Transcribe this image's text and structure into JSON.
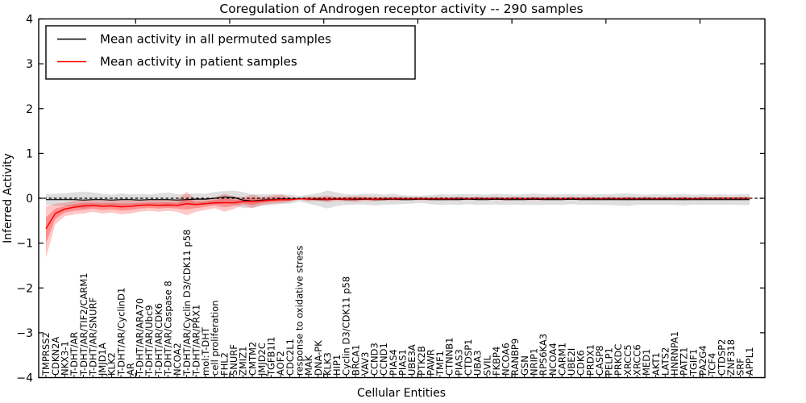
{
  "figure": {
    "background": "#ffffff",
    "accent_black": "#000000",
    "accent_red": "#ff0000",
    "band_gray": "#999999",
    "band_red": "#ff0000"
  },
  "chart_data": {
    "type": "line",
    "title": "Coregulation of Androgen receptor activity -- 290 samples",
    "xlabel": "Cellular Entities",
    "ylabel": "Inferred Activity",
    "ylim": [
      -4,
      4
    ],
    "yticks": [
      -4,
      -3,
      -2,
      -1,
      0,
      1,
      2,
      3,
      4
    ],
    "ytick_labels": [
      "−4",
      "−3",
      "−2",
      "−1",
      "0",
      "1",
      "2",
      "3",
      "4"
    ],
    "grid": false,
    "legend_position": "upper left",
    "zero_line": 0,
    "categories": [
      "TMPRSS2",
      "CDKN2A",
      "NKX3-1",
      "T-DHT/AR",
      "T-DHT/AR/TIF2/CARM1",
      "T-DHT/AR/SNURF",
      "JMJD1A",
      "KLK2",
      "T-DHT/AR/CyclinD1",
      "AR",
      "T-DHT/AR/ARA70",
      "T-DHT/AR/Ubc9",
      "T-DHT/AR/CDK6",
      "T-DHT/AR/Caspase 8",
      "NCOA2",
      "T-DHT/AR/Cyclin D3/CDK11 p58",
      "T-DHT/AR/PRX1",
      "mol:T-DHT",
      "cell proliferation",
      "FHL2",
      "SNURF",
      "ZMIZ1",
      "CMTM2",
      "JMJD2C",
      "TGFB1I1",
      "AOF2",
      "CDC2L1",
      "response to oxidative stress",
      "MAK",
      "DNA-PK",
      "KLK3",
      "HIP1",
      "Cyclin D3/CDK11 p58",
      "BRCA1",
      "VAV3",
      "CCND3",
      "CCND1",
      "PIAS4",
      "PIAS1",
      "UBE3A",
      "PTK2B",
      "PAWR",
      "TMF1",
      "CTNNB1",
      "PIAS3",
      "CTDSP1",
      "UBA3",
      "SVIL",
      "FKBP4",
      "NCOA6",
      "RANBP9",
      "GSN",
      "NRIP1",
      "RPS6KA3",
      "NCOA4",
      "CARM1",
      "UBE2I",
      "CDK6",
      "PRDX1",
      "CASP8",
      "PELP1",
      "PRKDC",
      "XRCC5",
      "XRCC6",
      "MED1",
      "AKT1",
      "LATS2",
      "HNRNPA1",
      "PATZ1",
      "TGIF1",
      "PA2G4",
      "TCF4",
      "CTDSP2",
      "ZNF318",
      "SRF",
      "APPL1"
    ],
    "series": [
      {
        "name": "Mean activity in all permuted samples",
        "color": "#000000",
        "values": [
          -0.03,
          -0.03,
          -0.03,
          -0.03,
          -0.04,
          -0.03,
          -0.03,
          -0.04,
          -0.03,
          -0.03,
          -0.04,
          -0.03,
          -0.03,
          -0.03,
          -0.04,
          -0.03,
          -0.02,
          -0.02,
          0.0,
          0.03,
          0.02,
          -0.04,
          -0.06,
          -0.04,
          -0.03,
          -0.02,
          -0.02,
          -0.01,
          -0.02,
          -0.03,
          -0.03,
          -0.02,
          -0.03,
          -0.03,
          -0.02,
          -0.03,
          -0.03,
          -0.02,
          -0.03,
          -0.03,
          -0.02,
          -0.03,
          -0.03,
          -0.03,
          -0.03,
          -0.02,
          -0.03,
          -0.03,
          -0.02,
          -0.03,
          -0.03,
          -0.03,
          -0.02,
          -0.03,
          -0.03,
          -0.03,
          -0.02,
          -0.03,
          -0.03,
          -0.03,
          -0.03,
          -0.03,
          -0.03,
          -0.03,
          -0.03,
          -0.03,
          -0.03,
          -0.03,
          -0.03,
          -0.03,
          -0.03,
          -0.03,
          -0.03,
          -0.03,
          -0.03,
          -0.03
        ],
        "band_halfwidth": [
          0.12,
          0.13,
          0.14,
          0.16,
          0.19,
          0.16,
          0.13,
          0.12,
          0.14,
          0.12,
          0.13,
          0.12,
          0.14,
          0.16,
          0.13,
          0.12,
          0.13,
          0.12,
          0.14,
          0.13,
          0.15,
          0.18,
          0.15,
          0.13,
          0.12,
          0.11,
          0.1,
          0.06,
          0.1,
          0.14,
          0.2,
          0.15,
          0.12,
          0.11,
          0.12,
          0.13,
          0.11,
          0.12,
          0.1,
          0.09,
          0.08,
          0.1,
          0.12,
          0.11,
          0.12,
          0.11,
          0.12,
          0.11,
          0.12,
          0.12,
          0.11,
          0.12,
          0.13,
          0.12,
          0.11,
          0.12,
          0.11,
          0.12,
          0.11,
          0.12,
          0.12,
          0.13,
          0.14,
          0.12,
          0.11,
          0.12,
          0.11,
          0.12,
          0.13,
          0.11,
          0.12,
          0.11,
          0.12,
          0.11,
          0.12,
          0.12
        ]
      },
      {
        "name": "Mean activity in patient samples",
        "color": "#ff0000",
        "values": [
          -0.68,
          -0.34,
          -0.24,
          -0.2,
          -0.17,
          -0.16,
          -0.18,
          -0.17,
          -0.19,
          -0.18,
          -0.16,
          -0.15,
          -0.16,
          -0.15,
          -0.16,
          -0.12,
          -0.14,
          -0.12,
          -0.1,
          -0.1,
          -0.1,
          -0.07,
          -0.07,
          -0.06,
          -0.04,
          -0.03,
          -0.03,
          -0.01,
          -0.02,
          -0.01,
          -0.02,
          -0.01,
          -0.02,
          -0.01,
          -0.01,
          -0.02,
          -0.01,
          -0.01,
          -0.01,
          -0.01,
          -0.01,
          -0.01,
          -0.01,
          -0.01,
          0.0,
          -0.01,
          0.0,
          -0.01,
          0.0,
          -0.01,
          0.0,
          -0.01,
          0.0,
          -0.01,
          0.0,
          -0.01,
          0.0,
          -0.01,
          0.0,
          -0.01,
          0.0,
          -0.01,
          0.0,
          -0.01,
          0.0,
          -0.01,
          0.0,
          -0.01,
          0.0,
          -0.01,
          0.0,
          0.0,
          0.0,
          0.0,
          0.0,
          0.0
        ],
        "band_lower": [
          -1.33,
          -0.58,
          -0.4,
          -0.36,
          -0.34,
          -0.3,
          -0.34,
          -0.32,
          -0.36,
          -0.34,
          -0.3,
          -0.28,
          -0.3,
          -0.28,
          -0.3,
          -0.38,
          -0.3,
          -0.26,
          -0.22,
          -0.3,
          -0.24,
          -0.16,
          -0.22,
          -0.15,
          -0.12,
          -0.11,
          -0.08,
          -0.03,
          -0.07,
          -0.06,
          -0.09,
          -0.06,
          -0.07,
          -0.08,
          -0.06,
          -0.07,
          -0.05,
          -0.06,
          -0.05,
          -0.04,
          -0.05,
          -0.04,
          -0.05,
          -0.04,
          -0.05,
          -0.04,
          -0.04,
          -0.04,
          -0.04,
          -0.05,
          -0.04,
          -0.04,
          -0.05,
          -0.04,
          -0.04,
          -0.04,
          -0.04,
          -0.04,
          -0.04,
          -0.04,
          -0.04,
          -0.04,
          -0.05,
          -0.04,
          -0.04,
          -0.04,
          -0.04,
          -0.04,
          -0.05,
          -0.04,
          -0.04,
          -0.04,
          -0.04,
          -0.04,
          -0.04,
          -0.04
        ],
        "band_upper": [
          -0.18,
          -0.12,
          -0.1,
          -0.06,
          -0.04,
          -0.04,
          -0.05,
          -0.04,
          -0.04,
          -0.05,
          -0.04,
          -0.04,
          -0.03,
          -0.03,
          -0.04,
          0.15,
          -0.03,
          -0.01,
          0.02,
          0.1,
          0.04,
          0.02,
          0.08,
          0.03,
          0.06,
          0.08,
          0.03,
          0.01,
          0.04,
          0.03,
          0.06,
          0.03,
          0.04,
          0.05,
          0.04,
          0.03,
          0.03,
          0.04,
          0.03,
          0.02,
          0.03,
          0.02,
          0.03,
          0.02,
          0.03,
          0.02,
          0.03,
          0.02,
          0.03,
          0.02,
          0.03,
          0.02,
          0.03,
          0.02,
          0.03,
          0.02,
          0.03,
          0.02,
          0.03,
          0.02,
          0.03,
          0.02,
          0.03,
          0.02,
          0.03,
          0.02,
          0.03,
          0.02,
          0.03,
          0.02,
          0.03,
          0.02,
          0.03,
          0.02,
          0.03,
          0.03
        ]
      }
    ]
  },
  "legend": {
    "entry_permuted": "Mean activity in all permuted samples",
    "entry_patient": "Mean activity in patient samples"
  }
}
